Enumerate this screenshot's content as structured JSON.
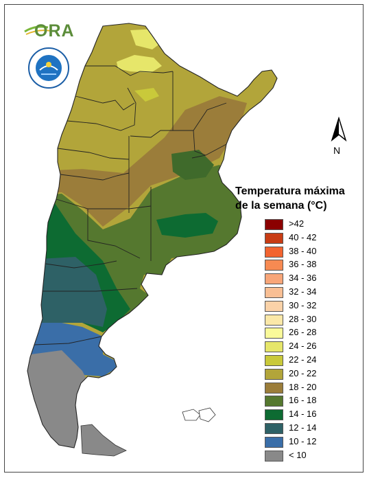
{
  "map": {
    "compass_label": "N",
    "legend_title_line1": "Temperatura máxima",
    "legend_title_line2": "de la semana (°C)",
    "legend": [
      {
        "label": ">42",
        "color": "#8b0000"
      },
      {
        "label": "40 - 42",
        "color": "#c83c14"
      },
      {
        "label": "38 - 40",
        "color": "#f26430"
      },
      {
        "label": "36 - 38",
        "color": "#f78a52"
      },
      {
        "label": "34 - 36",
        "color": "#f8a679"
      },
      {
        "label": "32 - 34",
        "color": "#f9bf94"
      },
      {
        "label": "30 - 32",
        "color": "#fad2a8"
      },
      {
        "label": "28 - 30",
        "color": "#fbe8a8"
      },
      {
        "label": "26 - 28",
        "color": "#fafa9a"
      },
      {
        "label": "24 - 26",
        "color": "#e6e66a"
      },
      {
        "label": "22 - 24",
        "color": "#c9c93a"
      },
      {
        "label": "20 - 22",
        "color": "#b2a53a"
      },
      {
        "label": "18 - 20",
        "color": "#9b7d3a"
      },
      {
        "label": "16 - 18",
        "color": "#55782f"
      },
      {
        "label": "14 - 16",
        "color": "#0d6b32"
      },
      {
        "label": "12 - 14",
        "color": "#2e6166"
      },
      {
        "label": "10 - 12",
        "color": "#3a6ea8"
      },
      {
        "label": "< 10",
        "color": "#898989"
      }
    ]
  },
  "logos": {
    "ora_text": "ORA",
    "smn_seal_text": "SERVICIO METEOROLOGICO NACIONAL ARGENTINA"
  }
}
